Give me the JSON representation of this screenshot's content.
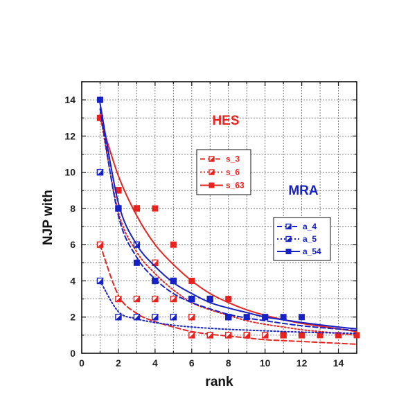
{
  "chart_data": {
    "type": "scatter",
    "xlabel": "rank",
    "ylabel": "NJP with",
    "xlim": [
      0,
      15
    ],
    "ylim": [
      0,
      15
    ],
    "x_ticks": [
      0,
      2,
      4,
      6,
      8,
      10,
      12,
      14
    ],
    "y_ticks": [
      0,
      2,
      4,
      6,
      8,
      10,
      12,
      14
    ],
    "grid": true,
    "annotations": [
      {
        "text": "HES",
        "color": "#e8231f"
      },
      {
        "text": "MRA",
        "color": "#1622c4"
      }
    ],
    "legends": [
      {
        "group": "HES",
        "placement": "upper-center",
        "entries": [
          "s_3",
          "s_6",
          "s_63"
        ]
      },
      {
        "group": "MRA",
        "placement": "center-right",
        "entries": [
          "a_4",
          "a_5",
          "a_54"
        ]
      }
    ],
    "series": [
      {
        "name": "s_3",
        "color": "#e8231f",
        "marker": "half-square",
        "line": "dashed",
        "x": [
          1,
          2,
          3,
          4,
          5,
          6,
          7,
          8,
          9,
          10,
          11,
          12
        ],
        "y": [
          6,
          3,
          3,
          3,
          3,
          1,
          1,
          1,
          1,
          1,
          1,
          1
        ],
        "fit": [
          6.0,
          3.2,
          2.2,
          1.75,
          1.45,
          1.2,
          1.05,
          0.95,
          0.85,
          0.75,
          0.7,
          0.65,
          0.6,
          0.55,
          0.5
        ]
      },
      {
        "name": "s_6",
        "color": "#e8231f",
        "marker": "half-square",
        "line": "dotted",
        "x": [
          1,
          2,
          3,
          4,
          5,
          6,
          7,
          8,
          9
        ],
        "y": [
          10,
          9,
          8,
          5,
          2,
          2,
          1,
          1,
          1
        ],
        "fit": [
          13.2,
          7.8,
          5.6,
          4.4,
          3.5,
          2.8,
          2.4,
          2.1,
          1.8,
          1.6,
          1.45,
          1.3,
          1.2,
          1.1,
          1.0
        ]
      },
      {
        "name": "s_63",
        "color": "#e8231f",
        "marker": "filled-square",
        "line": "solid",
        "x": [
          1,
          2,
          3,
          4,
          5,
          6,
          7,
          8,
          9,
          10,
          11,
          12,
          13,
          14,
          15
        ],
        "y": [
          13,
          9,
          8,
          8,
          6,
          4,
          3,
          3,
          2,
          2,
          1,
          1,
          1,
          1,
          1
        ],
        "fit": [
          13.0,
          9.8,
          7.6,
          6.0,
          4.9,
          4.0,
          3.3,
          2.8,
          2.4,
          2.1,
          1.85,
          1.65,
          1.5,
          1.35,
          1.2
        ]
      },
      {
        "name": "a_4",
        "color": "#1622c4",
        "marker": "half-square",
        "line": "dashed",
        "x": [
          1,
          2,
          3,
          4,
          5,
          6,
          7,
          8
        ],
        "y": [
          10,
          8,
          6,
          4,
          4,
          3,
          3,
          2
        ],
        "fit": [
          13.5,
          7.6,
          5.3,
          4.1,
          3.3,
          2.8,
          2.45,
          2.15,
          1.95,
          1.8,
          1.65,
          1.52,
          1.42,
          1.34,
          1.26
        ]
      },
      {
        "name": "a_5",
        "color": "#1622c4",
        "marker": "half-square",
        "line": "dotted",
        "x": [
          1,
          2,
          3,
          4,
          5
        ],
        "y": [
          4,
          2,
          2,
          2,
          2
        ],
        "fit": [
          4.0,
          2.3,
          1.9,
          1.7,
          1.55,
          1.45,
          1.38,
          1.32,
          1.28,
          1.24,
          1.2,
          1.17,
          1.14,
          1.12,
          1.1
        ]
      },
      {
        "name": "a_54",
        "color": "#1622c4",
        "marker": "filled-square",
        "line": "solid",
        "x": [
          1,
          2,
          3,
          4,
          5,
          6,
          7,
          8,
          9,
          10,
          11,
          12
        ],
        "y": [
          14,
          8,
          5,
          4,
          4,
          3,
          3,
          2,
          2,
          2,
          2,
          2
        ],
        "fit": [
          13.8,
          8.3,
          6.0,
          4.8,
          3.9,
          3.3,
          2.8,
          2.5,
          2.25,
          2.0,
          1.85,
          1.7,
          1.57,
          1.45,
          1.35
        ]
      }
    ]
  }
}
